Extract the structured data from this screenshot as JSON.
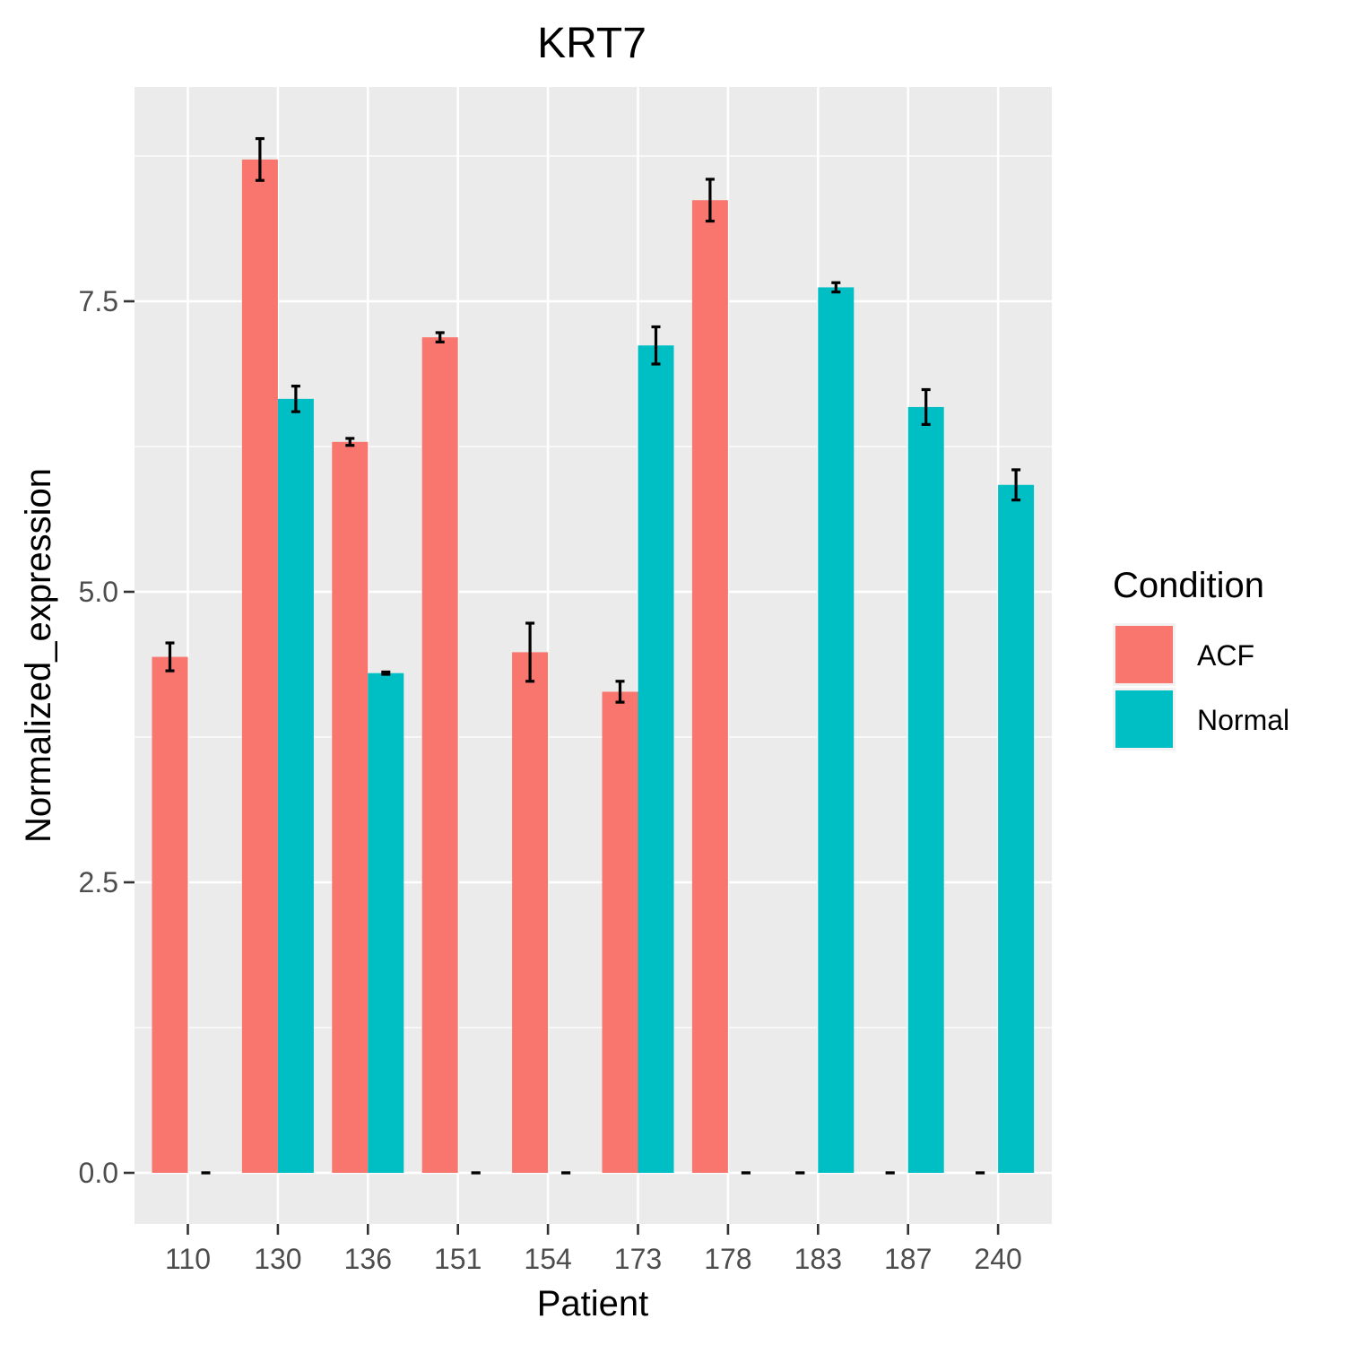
{
  "chart_data": {
    "type": "bar",
    "title": "KRT7",
    "xlabel": "Patient",
    "ylabel": "Normalized_expression",
    "categories": [
      "110",
      "130",
      "136",
      "151",
      "154",
      "173",
      "178",
      "183",
      "187",
      "240"
    ],
    "yticks": [
      0.0,
      2.5,
      5.0,
      7.5
    ],
    "ytick_labels": [
      "0.0",
      "2.5",
      "5.0",
      "7.5"
    ],
    "ylim": [
      -0.43,
      9.35
    ],
    "grid": true,
    "legend": {
      "title": "Condition",
      "position": "right"
    },
    "series": [
      {
        "name": "ACF",
        "color": "#F8766D",
        "values": [
          4.44,
          8.72,
          6.29,
          7.19,
          4.48,
          4.14,
          8.37,
          0,
          0,
          0
        ],
        "error": [
          0.12,
          0.18,
          0.03,
          0.04,
          0.25,
          0.09,
          0.18,
          0,
          0,
          0
        ]
      },
      {
        "name": "Normal",
        "color": "#00BFC4",
        "values": [
          0,
          6.66,
          4.3,
          0,
          0,
          7.12,
          0,
          7.62,
          6.59,
          5.92
        ],
        "error": [
          0,
          0.11,
          0.01,
          0,
          0,
          0.16,
          0,
          0.04,
          0.15,
          0.13
        ]
      }
    ]
  }
}
